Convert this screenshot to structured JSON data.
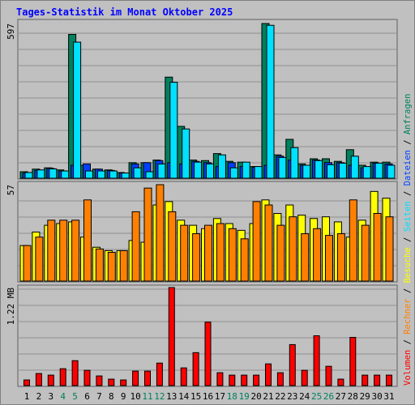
{
  "title": "Tages-Statistik im Monat Oktober 2025",
  "legend_separator": " / ",
  "chart_data": [
    {
      "type": "bar",
      "ylim": [
        0,
        597
      ],
      "yticks": [
        597
      ],
      "series": [
        {
          "name": "Anfragen",
          "color": "#00805c",
          "values": [
            25,
            35,
            40,
            32,
            555,
            50,
            35,
            32,
            22,
            60,
            60,
            70,
            390,
            200,
            70,
            68,
            95,
            65,
            62,
            45,
            597,
            90,
            150,
            55,
            75,
            75,
            65,
            110,
            50,
            62,
            62
          ]
        },
        {
          "name": "Dateien",
          "color": "#0040ff",
          "values": [
            20,
            30,
            38,
            28,
            50,
            55,
            35,
            30,
            20,
            55,
            60,
            68,
            60,
            55,
            65,
            60,
            45,
            60,
            45,
            42,
            50,
            85,
            70,
            50,
            70,
            60,
            60,
            50,
            40,
            58,
            55
          ]
        },
        {
          "name": "Seiten",
          "color": "#00e0ff",
          "values": [
            22,
            32,
            36,
            28,
            525,
            28,
            28,
            28,
            20,
            40,
            25,
            55,
            370,
            190,
            62,
            55,
            90,
            40,
            62,
            45,
            590,
            80,
            118,
            50,
            68,
            52,
            58,
            85,
            45,
            58,
            50
          ]
        }
      ]
    },
    {
      "type": "bar",
      "ylim": [
        0,
        57
      ],
      "yticks": [
        57
      ],
      "series": [
        {
          "name": "Besuche",
          "color": "#ffff00",
          "values": [
            21,
            29,
            33,
            34,
            35,
            26,
            20,
            18,
            18,
            24,
            23,
            45,
            47,
            36,
            33,
            31,
            37,
            34,
            30,
            34,
            48,
            40,
            45,
            39,
            37,
            38,
            35,
            26,
            36,
            53,
            49
          ]
        },
        {
          "name": "Rechner",
          "color": "#ff8000",
          "values": [
            21,
            26,
            36,
            36,
            36,
            48,
            19,
            17,
            18,
            41,
            55,
            57,
            41,
            33,
            28,
            33,
            34,
            31,
            25,
            47,
            45,
            33,
            38,
            28,
            31,
            27,
            28,
            48,
            33,
            40,
            38
          ]
        }
      ]
    },
    {
      "type": "bar",
      "ylim": [
        0,
        1.22
      ],
      "yticks": [
        {
          "value": 1.22,
          "label": "1.22 MB"
        }
      ],
      "categories": [
        "1",
        "2",
        "3",
        "4",
        "5",
        "6",
        "7",
        "8",
        "9",
        "10",
        "11",
        "12",
        "13",
        "14",
        "15",
        "16",
        "17",
        "18",
        "19",
        "20",
        "21",
        "22",
        "23",
        "24",
        "25",
        "26",
        "27",
        "28",
        "29",
        "30",
        "31"
      ],
      "category_colors": [
        "#000000",
        "#000000",
        "#000000",
        "#00805c",
        "#00805c",
        "#000000",
        "#000000",
        "#000000",
        "#000000",
        "#000000",
        "#00805c",
        "#00805c",
        "#000000",
        "#000000",
        "#000000",
        "#000000",
        "#000000",
        "#00805c",
        "#00805c",
        "#000000",
        "#000000",
        "#000000",
        "#000000",
        "#000000",
        "#00805c",
        "#00805c",
        "#000000",
        "#000000",
        "#000000",
        "#000000",
        "#000000"
      ],
      "series": [
        {
          "name": "Volumen",
          "color": "#ff0000",
          "values": [
            0.07,
            0.15,
            0.13,
            0.21,
            0.31,
            0.19,
            0.12,
            0.08,
            0.07,
            0.18,
            0.18,
            0.28,
            1.22,
            0.22,
            0.41,
            0.79,
            0.16,
            0.13,
            0.13,
            0.13,
            0.27,
            0.16,
            0.51,
            0.19,
            0.62,
            0.24,
            0.08,
            0.6,
            0.13,
            0.13,
            0.13
          ]
        }
      ]
    }
  ]
}
